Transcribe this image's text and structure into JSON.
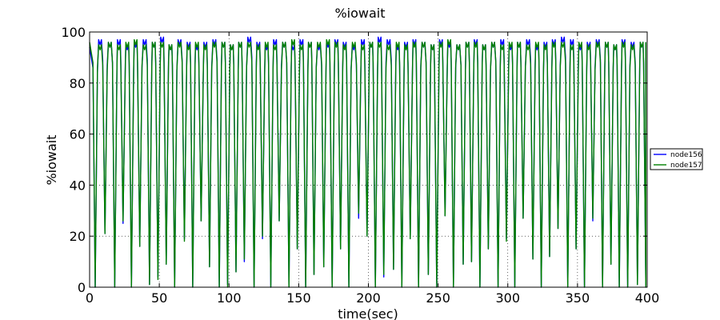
{
  "chart_data": {
    "type": "line",
    "title": "%iowait",
    "xlabel": "time(sec)",
    "ylabel": "%iowait",
    "xlim": [
      0,
      400
    ],
    "ylim": [
      0,
      100
    ],
    "xticks": [
      0,
      50,
      100,
      150,
      200,
      250,
      300,
      350,
      400
    ],
    "yticks": [
      0,
      20,
      40,
      60,
      80,
      100
    ],
    "grid": true,
    "legend_position": "right",
    "period_sec": 6.25,
    "series": [
      {
        "name": "node156",
        "color": "#0000ff",
        "trough_times": [
          4,
          11,
          18,
          24,
          30,
          36,
          43,
          49,
          55,
          61,
          68,
          74,
          80,
          86,
          93,
          99,
          105,
          111,
          118,
          124,
          130,
          136,
          143,
          149,
          155,
          161,
          168,
          174,
          180,
          186,
          193,
          199,
          205,
          211,
          218,
          224,
          230,
          236,
          243,
          249,
          255,
          261,
          268,
          274,
          280,
          286,
          293,
          299,
          305,
          311,
          318,
          324,
          330,
          336,
          343,
          349,
          355,
          361,
          368,
          374,
          380,
          386,
          393,
          399
        ],
        "trough_values": [
          0,
          21,
          0,
          25,
          0,
          16,
          1,
          4,
          9,
          0,
          19,
          0,
          26,
          8,
          0,
          1,
          6,
          10,
          0,
          19,
          0,
          26,
          0,
          15,
          0,
          5,
          8,
          0,
          15,
          0,
          27,
          20,
          0,
          4,
          7,
          0,
          19,
          0,
          5,
          0,
          28,
          0,
          9,
          10,
          0,
          15,
          0,
          19,
          0,
          27,
          11,
          0,
          12,
          23,
          0,
          15,
          0,
          26,
          0,
          9,
          0,
          0,
          1,
          0
        ],
        "peak_values": [
          94,
          97,
          96,
          97,
          95,
          96,
          97,
          96,
          98,
          95,
          97,
          96,
          95,
          96,
          97,
          96,
          95,
          96,
          98,
          96,
          95,
          97,
          96,
          95,
          97,
          96,
          95,
          96,
          97,
          96,
          95,
          97,
          96,
          98,
          97,
          95,
          96,
          97,
          96,
          95,
          97,
          96,
          95,
          96,
          97,
          95,
          96,
          97,
          95,
          96,
          97,
          95,
          96,
          97,
          98,
          97,
          95,
          96,
          97,
          96,
          95,
          97,
          96,
          96
        ]
      },
      {
        "name": "node157",
        "color": "#008000",
        "trough_times": [
          4,
          11,
          18,
          24,
          30,
          36,
          43,
          49,
          55,
          61,
          68,
          74,
          80,
          86,
          93,
          99,
          105,
          111,
          118,
          124,
          130,
          136,
          143,
          149,
          155,
          161,
          168,
          174,
          180,
          186,
          193,
          199,
          205,
          211,
          218,
          224,
          230,
          236,
          243,
          249,
          255,
          261,
          268,
          274,
          280,
          286,
          293,
          299,
          305,
          311,
          318,
          324,
          330,
          336,
          343,
          349,
          355,
          361,
          368,
          374,
          380,
          386,
          393,
          399
        ],
        "trough_values": [
          0,
          21,
          0,
          26,
          0,
          16,
          1,
          3,
          9,
          0,
          18,
          0,
          26,
          8,
          0,
          0,
          6,
          11,
          0,
          20,
          0,
          26,
          0,
          15,
          0,
          5,
          8,
          0,
          15,
          0,
          29,
          20,
          0,
          5,
          7,
          0,
          19,
          0,
          5,
          0,
          28,
          0,
          9,
          10,
          0,
          15,
          0,
          18,
          0,
          27,
          11,
          0,
          12,
          23,
          0,
          15,
          0,
          27,
          0,
          9,
          0,
          0,
          1,
          0
        ],
        "peak_values": [
          96,
          95,
          96,
          95,
          96,
          97,
          95,
          96,
          96,
          95,
          96,
          95,
          96,
          95,
          96,
          96,
          95,
          96,
          96,
          95,
          96,
          95,
          96,
          97,
          95,
          96,
          96,
          97,
          96,
          95,
          96,
          95,
          96,
          96,
          95,
          96,
          95,
          96,
          96,
          95,
          96,
          97,
          95,
          96,
          96,
          95,
          96,
          95,
          96,
          96,
          95,
          96,
          95,
          96,
          96,
          95,
          96,
          95,
          96,
          96,
          95,
          96,
          95,
          96
        ]
      }
    ]
  }
}
